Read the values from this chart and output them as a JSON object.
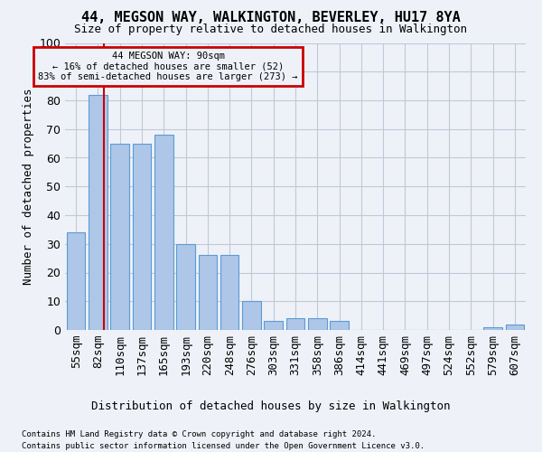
{
  "title": "44, MEGSON WAY, WALKINGTON, BEVERLEY, HU17 8YA",
  "subtitle": "Size of property relative to detached houses in Walkington",
  "xlabel": "Distribution of detached houses by size in Walkington",
  "ylabel": "Number of detached properties",
  "bin_labels": [
    "55sqm",
    "82sqm",
    "110sqm",
    "137sqm",
    "165sqm",
    "193sqm",
    "220sqm",
    "248sqm",
    "276sqm",
    "303sqm",
    "331sqm",
    "358sqm",
    "386sqm",
    "414sqm",
    "441sqm",
    "469sqm",
    "497sqm",
    "524sqm",
    "552sqm",
    "579sqm",
    "607sqm"
  ],
  "bar_heights": [
    34,
    82,
    65,
    65,
    68,
    30,
    26,
    26,
    10,
    3,
    4,
    4,
    3,
    0,
    0,
    0,
    0,
    0,
    0,
    1,
    2
  ],
  "bar_color": "#aec6e8",
  "bar_edge_color": "#5b9bd5",
  "grid_color": "#c0c8d8",
  "background_color": "#eef2f8",
  "annotation_line1": "44 MEGSON WAY: 90sqm",
  "annotation_line2": "← 16% of detached houses are smaller (52)",
  "annotation_line3": "83% of semi-detached houses are larger (273) →",
  "annotation_box_edgecolor": "#cc0000",
  "red_line_color": "#cc0000",
  "ylim": [
    0,
    100
  ],
  "yticks": [
    0,
    10,
    20,
    30,
    40,
    50,
    60,
    70,
    80,
    90,
    100
  ],
  "footnote1": "Contains HM Land Registry data © Crown copyright and database right 2024.",
  "footnote2": "Contains public sector information licensed under the Open Government Licence v3.0.",
  "property_sqm": 90,
  "bin_start_sqm": [
    55,
    82,
    110,
    137,
    165,
    193,
    220,
    248,
    276,
    303,
    331,
    358,
    386,
    414,
    441,
    469,
    497,
    524,
    552,
    579,
    607
  ]
}
